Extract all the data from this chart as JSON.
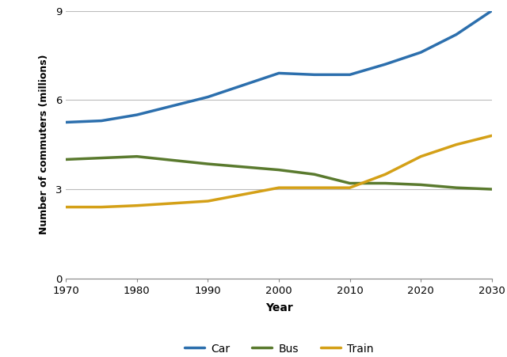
{
  "years": [
    1970,
    1975,
    1980,
    1990,
    2000,
    2005,
    2010,
    2015,
    2020,
    2025,
    2030
  ],
  "car": [
    5.25,
    5.3,
    5.5,
    6.1,
    6.9,
    6.85,
    6.85,
    7.2,
    7.6,
    8.2,
    9.0
  ],
  "bus": [
    4.0,
    4.05,
    4.1,
    3.85,
    3.65,
    3.5,
    3.2,
    3.2,
    3.15,
    3.05,
    3.0
  ],
  "train": [
    2.4,
    2.4,
    2.45,
    2.6,
    3.05,
    3.05,
    3.05,
    3.5,
    4.1,
    4.5,
    4.8
  ],
  "car_color": "#2c6fad",
  "bus_color": "#5a7a2e",
  "train_color": "#d4a017",
  "linewidth": 2.5,
  "xlabel": "Year",
  "ylabel": "Number of commuters (millions)",
  "ylim": [
    0,
    9
  ],
  "xlim": [
    1970,
    2030
  ],
  "yticks": [
    0,
    3,
    6,
    9
  ],
  "xticks": [
    1970,
    1980,
    1990,
    2000,
    2010,
    2020,
    2030
  ],
  "legend_labels": [
    "Car",
    "Bus",
    "Train"
  ],
  "background_color": "#ffffff",
  "grid_color": "#bbbbbb"
}
